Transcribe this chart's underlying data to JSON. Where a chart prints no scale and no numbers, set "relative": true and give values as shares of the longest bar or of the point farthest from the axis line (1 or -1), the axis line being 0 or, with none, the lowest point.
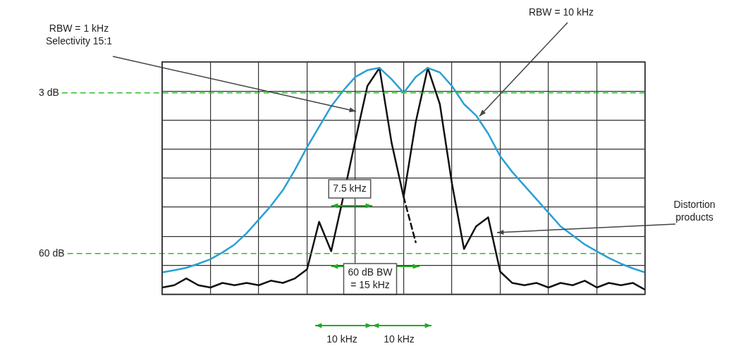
{
  "chart_data": {
    "type": "line",
    "relative": true,
    "grid": true,
    "legend": false,
    "marker": "none",
    "categories": [
      null,
      null,
      null,
      null,
      null,
      null,
      null,
      null,
      null,
      null,
      null,
      null,
      null,
      null,
      null,
      null,
      null,
      null,
      null,
      null,
      null,
      null,
      null,
      null,
      null,
      null,
      null,
      null,
      null,
      null,
      null,
      null,
      null,
      null,
      null,
      null,
      null,
      null,
      null,
      null,
      null
    ],
    "series": [
      {
        "color": "#2aa0d4",
        "values": [
          0.097,
          0.106,
          0.117,
          0.135,
          0.155,
          0.185,
          0.22,
          0.27,
          0.33,
          0.39,
          0.46,
          0.55,
          0.65,
          0.74,
          0.83,
          0.9,
          0.96,
          0.99,
          1.0,
          0.95,
          0.89,
          0.96,
          1.0,
          0.98,
          0.92,
          0.84,
          0.79,
          0.71,
          0.61,
          0.54,
          0.48,
          0.42,
          0.36,
          0.3,
          0.26,
          0.22,
          0.19,
          0.16,
          0.135,
          0.114,
          0.097
        ]
      },
      {
        "color": "#111111",
        "values": [
          0.03,
          0.04,
          0.07,
          0.04,
          0.03,
          0.05,
          0.04,
          0.05,
          0.04,
          0.06,
          0.05,
          0.07,
          0.11,
          0.32,
          0.19,
          0.43,
          0.68,
          0.92,
          1.0,
          0.67,
          0.43,
          0.76,
          1.0,
          0.84,
          0.49,
          0.2,
          0.3,
          0.34,
          0.1,
          0.05,
          0.04,
          0.05,
          0.03,
          0.05,
          0.04,
          0.06,
          0.03,
          0.05,
          0.04,
          0.05,
          0.02
        ]
      },
      {
        "color": "#111111",
        "line_style": "dashed",
        "values": [
          null,
          null,
          null,
          null,
          null,
          null,
          null,
          null,
          null,
          null,
          null,
          null,
          null,
          null,
          null,
          null,
          null,
          null,
          null,
          null,
          0.43,
          0.23,
          null,
          null,
          null,
          null,
          null,
          null,
          null,
          null,
          null,
          null,
          null,
          null,
          null,
          null,
          null,
          null,
          null,
          null,
          null
        ]
      }
    ],
    "ref_lines": [
      {
        "axis": "y",
        "value": 0.89,
        "label": "3 dB",
        "color": "#33bb33",
        "line_style": "dashed"
      },
      {
        "axis": "y",
        "value": 0.18,
        "label": "60 dB",
        "color": "#33bb33",
        "line_style": "dashed"
      }
    ],
    "annotations": [
      "RBW = 1 kHz\nSelectivity 15:1",
      "RBW = 10 kHz",
      "Distortion products",
      "7.5 kHz",
      "60 dB BW\n= 15 kHz",
      "10 kHz",
      "10 kHz"
    ]
  }
}
